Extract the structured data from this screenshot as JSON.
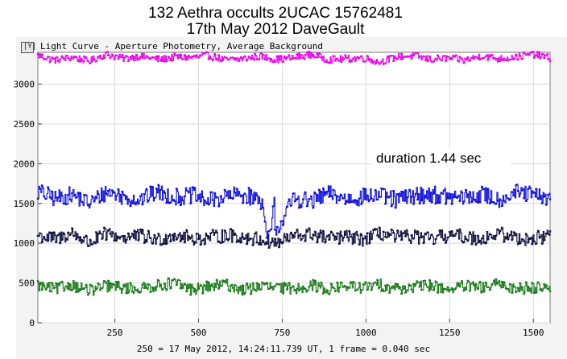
{
  "header": {
    "title_line1": "132 Aethra occults 2UCAC 15762481",
    "title_line2": "17th May 2012   DaveGault"
  },
  "window": {
    "icon": "chart-icon",
    "title": "Light Curve - Aperture Photometry, Average Background"
  },
  "annotation": "duration 1.44 sec",
  "footer": "250 = 17 May 2012, 14:24:11.739 UT, 1 frame = 0.040 sec",
  "chart_data": {
    "type": "line",
    "title": "",
    "xlabel": "",
    "ylabel": "",
    "xlim": [
      0,
      1550
    ],
    "ylim": [
      0,
      3400
    ],
    "grid": true,
    "x_ticks": [
      250,
      500,
      750,
      1000,
      1250,
      1500
    ],
    "y_ticks": [
      0,
      500,
      1000,
      1500,
      2000,
      2500,
      3000
    ],
    "series": [
      {
        "color": "#ee00ee",
        "level": 3330,
        "noise": 45,
        "y": [
          3360,
          3300,
          3340,
          3290,
          3380,
          3320,
          3350,
          3310,
          3340,
          3330,
          3360,
          3300,
          3320,
          3350,
          3310,
          3330,
          3370,
          3310,
          3320,
          3330,
          3280,
          3340,
          3360,
          3310,
          3330,
          3300,
          3360,
          3320,
          3340,
          3380,
          3330
        ]
      },
      {
        "color": "#1010e0",
        "level": 1580,
        "noise": 110,
        "dip": {
          "start": 690,
          "end": 726,
          "level": 1120
        },
        "y": [
          1650,
          1560,
          1610,
          1500,
          1650,
          1580,
          1550,
          1640,
          1580,
          1600,
          1530,
          1590,
          1610,
          1550,
          1180,
          1570,
          1520,
          1620,
          1560,
          1580,
          1600,
          1540,
          1600,
          1620,
          1580,
          1570,
          1610,
          1550,
          1640,
          1600,
          1560
        ]
      },
      {
        "color": "#101040",
        "level": 1080,
        "noise": 90,
        "y": [
          1100,
          1050,
          1130,
          1000,
          1120,
          1070,
          1090,
          1040,
          1110,
          1060,
          1070,
          1100,
          1080,
          1050,
          1000,
          1090,
          1110,
          1060,
          1080,
          1050,
          1120,
          1070,
          1090,
          1040,
          1100,
          1080,
          1060,
          1120,
          1070,
          1050,
          1110
        ]
      },
      {
        "color": "#1a7a1a",
        "level": 450,
        "noise": 75,
        "y": [
          470,
          420,
          480,
          400,
          460,
          440,
          430,
          470,
          500,
          420,
          450,
          480,
          410,
          460,
          440,
          430,
          470,
          420,
          460,
          440,
          480,
          430,
          450,
          470,
          420,
          460,
          440,
          480,
          430,
          450,
          460
        ]
      }
    ]
  }
}
